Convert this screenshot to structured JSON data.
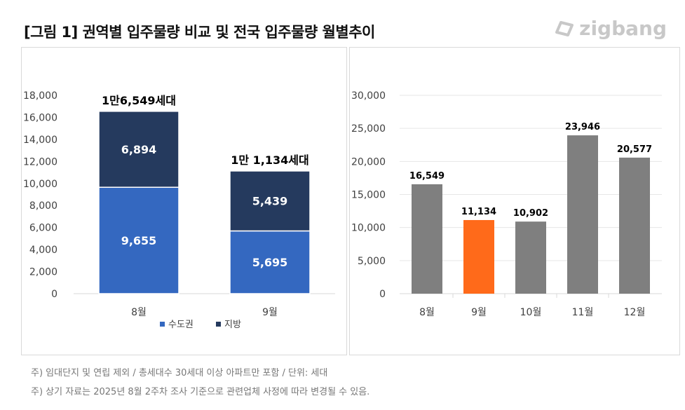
{
  "title": "[그림 1] 권역별 입주물량 비교 및 전국 입주물량 월별추이",
  "logo": "zigbang",
  "notes": [
    "주) 임대단지 및 연립 제외 / 총세대수 30세대 이상 아파트만 포함 / 단위: 세대",
    "주) 상기 자료는 2025년 8월 2주차 조사 기준으로 관련업체 사정에 따라 변경될 수 있음."
  ],
  "colors": {
    "capital": "#3468c0",
    "local": "#253a5e",
    "gray": "#7f7f7f",
    "highlight": "#ff6a1a"
  },
  "chart_data": [
    {
      "type": "bar",
      "stacked": true,
      "categories": [
        "8월",
        "9월"
      ],
      "series": [
        {
          "name": "수도권",
          "values": [
            9655,
            5695
          ],
          "labels": [
            "9,655",
            "5,695"
          ]
        },
        {
          "name": "지방",
          "values": [
            6894,
            5439
          ],
          "labels": [
            "6,894",
            "5,439"
          ]
        }
      ],
      "totals": [
        "1만6,549세대",
        "1만 1,134세대"
      ],
      "ylim": [
        0,
        18000
      ],
      "yticks": [
        "0",
        "2,000",
        "4,000",
        "6,000",
        "8,000",
        "10,000",
        "12,000",
        "14,000",
        "16,000",
        "18,000"
      ],
      "legend": "bottom"
    },
    {
      "type": "bar",
      "categories": [
        "8월",
        "9월",
        "10월",
        "11월",
        "12월"
      ],
      "values": [
        16549,
        11134,
        10902,
        23946,
        20577
      ],
      "labels": [
        "16,549",
        "11,134",
        "10,902",
        "23,946",
        "20,577"
      ],
      "highlight_index": 1,
      "ylim": [
        0,
        30000
      ],
      "yticks": [
        "0",
        "5,000",
        "10,000",
        "15,000",
        "20,000",
        "25,000",
        "30,000"
      ]
    }
  ]
}
